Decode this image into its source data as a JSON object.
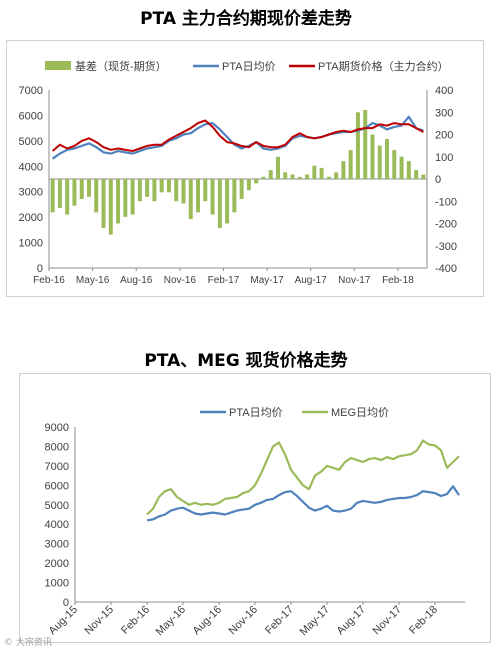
{
  "chart_data": [
    {
      "type": "bar+line",
      "title": "PTA 主力合约期现价差走势",
      "legend_position": "top",
      "legend": [
        "基差（现货-期货）",
        "PTA日均价",
        "PTA期货价格（主力合约）"
      ],
      "x_ticks": [
        "Feb-16",
        "May-16",
        "Aug-16",
        "Nov-16",
        "Feb-17",
        "May-17",
        "Aug-17",
        "Nov-17",
        "Feb-18"
      ],
      "x_range": [
        0,
        26
      ],
      "y_left": {
        "min": 0,
        "max": 7000,
        "step": 1000,
        "ticks": [
          "0",
          "1000",
          "2000",
          "3000",
          "4000",
          "5000",
          "6000",
          "7000"
        ]
      },
      "y_right": {
        "min": -400,
        "max": 400,
        "step": 100,
        "ticks": [
          "-400",
          "-300",
          "-200",
          "-100",
          "0",
          "100",
          "200",
          "300",
          "400"
        ]
      },
      "colors": {
        "basis": "#9bbb59",
        "pta_spot": "#4f81bd",
        "pta_futures": "#c00000"
      },
      "series": [
        {
          "name": "PTA日均价",
          "axis": "left",
          "x": [
            0,
            0.5,
            1,
            1.5,
            2,
            2.5,
            3,
            3.5,
            4,
            4.5,
            5,
            5.5,
            6,
            6.5,
            7,
            7.5,
            8,
            8.5,
            9,
            9.5,
            10,
            10.5,
            11,
            11.5,
            12,
            12.5,
            13,
            13.5,
            14,
            14.5,
            15,
            15.5,
            16,
            16.5,
            17,
            17.5,
            18,
            18.5,
            19,
            19.5,
            20,
            20.5,
            21,
            21.5,
            22,
            22.5,
            23,
            23.5,
            24,
            24.5,
            25,
            25.5
          ],
          "values": [
            4300,
            4500,
            4650,
            4700,
            4800,
            4900,
            4750,
            4550,
            4500,
            4600,
            4550,
            4500,
            4600,
            4700,
            4750,
            4800,
            5000,
            5100,
            5250,
            5300,
            5500,
            5650,
            5700,
            5450,
            5150,
            4850,
            4700,
            4800,
            4950,
            4700,
            4650,
            4700,
            4800,
            5100,
            5200,
            5150,
            5100,
            5150,
            5250,
            5300,
            5350,
            5350,
            5400,
            5500,
            5700,
            5600,
            5450,
            5550,
            5600,
            5950,
            5500,
            5400
          ]
        },
        {
          "name": "PTA期货价格（主力合约）",
          "axis": "left",
          "x": [
            0,
            0.5,
            1,
            1.5,
            2,
            2.5,
            3,
            3.5,
            4,
            4.5,
            5,
            5.5,
            6,
            6.5,
            7,
            7.5,
            8,
            8.5,
            9,
            9.5,
            10,
            10.5,
            11,
            11.5,
            12,
            12.5,
            13,
            13.5,
            14,
            14.5,
            15,
            15.5,
            16,
            16.5,
            17,
            17.5,
            18,
            18.5,
            19,
            19.5,
            20,
            20.5,
            21,
            21.5,
            22,
            22.5,
            23,
            23.5,
            24,
            24.5,
            25,
            25.5
          ],
          "values": [
            4600,
            4850,
            4700,
            4800,
            5000,
            5100,
            4950,
            4750,
            4650,
            4700,
            4650,
            4600,
            4700,
            4800,
            4850,
            4850,
            5050,
            5200,
            5350,
            5500,
            5700,
            5800,
            5550,
            5200,
            4950,
            4900,
            4800,
            4750,
            4950,
            4800,
            4750,
            4750,
            4850,
            5150,
            5300,
            5150,
            5100,
            5150,
            5250,
            5350,
            5400,
            5350,
            5450,
            5500,
            5500,
            5650,
            5600,
            5700,
            5650,
            5650,
            5500,
            5350
          ]
        },
        {
          "name": "基差（现货-期货）",
          "axis": "right",
          "type": "bar",
          "x": [
            0,
            0.5,
            1,
            1.5,
            2,
            2.5,
            3,
            3.5,
            4,
            4.5,
            5,
            5.5,
            6,
            6.5,
            7,
            7.5,
            8,
            8.5,
            9,
            9.5,
            10,
            10.5,
            11,
            11.5,
            12,
            12.5,
            13,
            13.5,
            14,
            14.5,
            15,
            15.5,
            16,
            16.5,
            17,
            17.5,
            18,
            18.5,
            19,
            19.5,
            20,
            20.5,
            21,
            21.5,
            22,
            22.5,
            23,
            23.5,
            24,
            24.5,
            25,
            25.5
          ],
          "values": [
            -150,
            -130,
            -160,
            -120,
            -90,
            -80,
            -150,
            -220,
            -250,
            -200,
            -170,
            -160,
            -100,
            -80,
            -100,
            -60,
            -60,
            -100,
            -110,
            -180,
            -150,
            -100,
            -160,
            -220,
            -200,
            -150,
            -90,
            -50,
            -20,
            10,
            40,
            100,
            30,
            20,
            10,
            20,
            60,
            50,
            10,
            30,
            80,
            130,
            300,
            310,
            200,
            150,
            180,
            130,
            100,
            80,
            40,
            20
          ]
        }
      ]
    },
    {
      "type": "line",
      "title": "PTA、MEG 现货价格走势",
      "legend_position": "top",
      "legend": [
        "PTA日均价",
        "MEG日均价"
      ],
      "x_ticks": [
        "Aug-15",
        "Nov-15",
        "Feb-16",
        "May-16",
        "Aug-16",
        "Nov-16",
        "Feb-17",
        "May-17",
        "Aug-17",
        "Nov-17",
        "Feb-18"
      ],
      "x_range": [
        0,
        32.5
      ],
      "y_left": {
        "min": 0,
        "max": 9000,
        "step": 1000,
        "ticks": [
          "0",
          "1000",
          "2000",
          "3000",
          "4000",
          "5000",
          "6000",
          "7000",
          "8000",
          "9000"
        ]
      },
      "colors": {
        "pta": "#4f81bd",
        "meg": "#9bbb59"
      },
      "series": [
        {
          "name": "PTA日均价",
          "x": [
            6,
            6.5,
            7,
            7.5,
            8,
            8.5,
            9,
            9.5,
            10,
            10.5,
            11,
            11.5,
            12,
            12.5,
            13,
            13.5,
            14,
            14.5,
            15,
            15.5,
            16,
            16.5,
            17,
            17.5,
            18,
            18.5,
            19,
            19.5,
            20,
            20.5,
            21,
            21.5,
            22,
            22.5,
            23,
            23.5,
            24,
            24.5,
            25,
            25.5,
            26,
            26.5,
            27,
            27.5,
            28,
            28.5,
            29,
            29.5,
            30,
            30.5,
            31,
            31.5,
            32
          ],
          "values": [
            4200,
            4250,
            4400,
            4500,
            4700,
            4800,
            4850,
            4700,
            4550,
            4500,
            4550,
            4600,
            4550,
            4500,
            4600,
            4700,
            4750,
            4800,
            5000,
            5100,
            5250,
            5300,
            5500,
            5650,
            5700,
            5450,
            5150,
            4850,
            4700,
            4800,
            4950,
            4700,
            4650,
            4700,
            4800,
            5100,
            5200,
            5150,
            5100,
            5150,
            5250,
            5300,
            5350,
            5350,
            5400,
            5500,
            5700,
            5650,
            5600,
            5450,
            5550,
            5950,
            5500
          ]
        },
        {
          "name": "MEG日均价",
          "x": [
            6,
            6.5,
            7,
            7.5,
            8,
            8.5,
            9,
            9.5,
            10,
            10.5,
            11,
            11.5,
            12,
            12.5,
            13,
            13.5,
            14,
            14.5,
            15,
            15.5,
            16,
            16.5,
            17,
            17.5,
            18,
            18.5,
            19,
            19.5,
            20,
            20.5,
            21,
            21.5,
            22,
            22.5,
            23,
            23.5,
            24,
            24.5,
            25,
            25.5,
            26,
            26.5,
            27,
            27.5,
            28,
            28.5,
            29,
            29.5,
            30,
            30.5,
            31,
            31.5,
            32
          ],
          "values": [
            4500,
            4800,
            5400,
            5700,
            5800,
            5400,
            5200,
            5000,
            5100,
            5000,
            5050,
            5000,
            5100,
            5300,
            5350,
            5400,
            5600,
            5700,
            6000,
            6600,
            7300,
            8000,
            8200,
            7600,
            6800,
            6400,
            6000,
            5800,
            6500,
            6700,
            7000,
            6900,
            6800,
            7200,
            7400,
            7300,
            7200,
            7350,
            7400,
            7300,
            7450,
            7350,
            7500,
            7550,
            7600,
            7800,
            8300,
            8100,
            8050,
            7800,
            6900,
            7200,
            7500
          ]
        }
      ]
    }
  ],
  "watermark": "© 大宗资讯"
}
